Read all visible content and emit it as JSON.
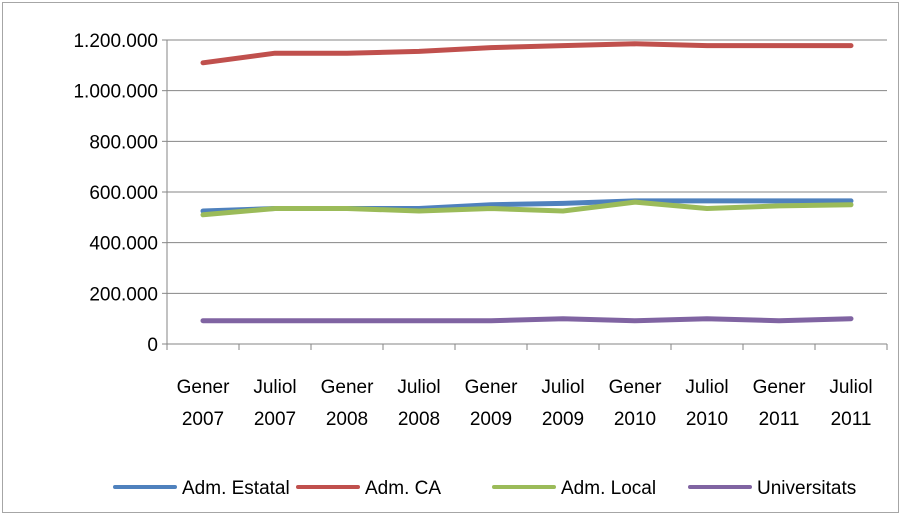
{
  "chart_data": {
    "type": "line",
    "categories": [
      [
        "Gener",
        "2007"
      ],
      [
        "Juliol",
        "2007"
      ],
      [
        "Gener",
        "2008"
      ],
      [
        "Juliol",
        "2008"
      ],
      [
        "Gener",
        "2009"
      ],
      [
        "Juliol",
        "2009"
      ],
      [
        "Gener",
        "2010"
      ],
      [
        "Juliol",
        "2010"
      ],
      [
        "Gener",
        "2011"
      ],
      [
        "Juliol",
        "2011"
      ]
    ],
    "ylim": [
      0,
      1200000
    ],
    "yticks": [
      {
        "value": 0,
        "label": "0"
      },
      {
        "value": 200000,
        "label": "200.000"
      },
      {
        "value": 400000,
        "label": "400.000"
      },
      {
        "value": 600000,
        "label": "600.000"
      },
      {
        "value": 800000,
        "label": "800.000"
      },
      {
        "value": 1000000,
        "label": "1.000.000"
      },
      {
        "value": 1200000,
        "label": "1.200.000"
      }
    ],
    "grid": "horizontal",
    "legend_position": "bottom",
    "series": [
      {
        "name": "Adm. Estatal",
        "color": "#4f81bd",
        "values": [
          525000,
          535000,
          535000,
          535000,
          550000,
          555000,
          565000,
          565000,
          565000,
          565000
        ]
      },
      {
        "name": "Adm. CA",
        "color": "#c0504d",
        "values": [
          1110000,
          1148000,
          1148000,
          1155000,
          1170000,
          1178000,
          1185000,
          1178000,
          1178000,
          1178000
        ]
      },
      {
        "name": "Adm. Local",
        "color": "#9bbb59",
        "values": [
          510000,
          535000,
          535000,
          525000,
          535000,
          525000,
          560000,
          535000,
          545000,
          550000
        ]
      },
      {
        "name": "Universitats",
        "color": "#8064a2",
        "values": [
          92000,
          92000,
          92000,
          92000,
          92000,
          100000,
          92000,
          100000,
          92000,
          100000
        ]
      }
    ]
  }
}
